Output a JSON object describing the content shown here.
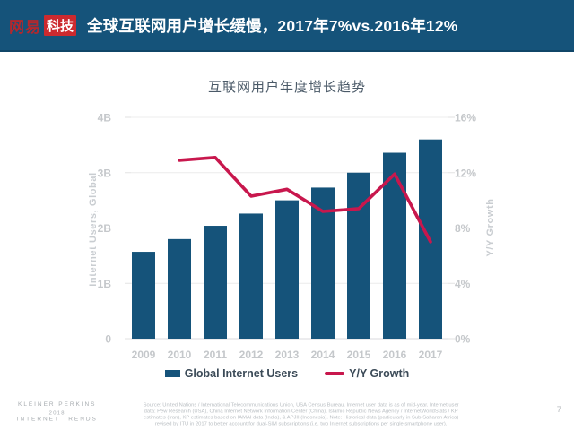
{
  "header": {
    "logo_brand": "网易",
    "logo_sub": "科技",
    "title": "全球互联网用户增长缓慢，2017年7%vs.2016年12%"
  },
  "chart_data": {
    "type": "bar+line",
    "title": "互联网用户年度增长趋势",
    "categories": [
      "2009",
      "2010",
      "2011",
      "2012",
      "2013",
      "2014",
      "2015",
      "2016",
      "2017"
    ],
    "series": [
      {
        "name": "Global Internet Users",
        "type": "bar",
        "axis": "left",
        "unit": "B",
        "color": "#15537a",
        "values": [
          1.57,
          1.8,
          2.04,
          2.26,
          2.5,
          2.73,
          3.0,
          3.36,
          3.6
        ]
      },
      {
        "name": "Y/Y Growth",
        "type": "line",
        "axis": "right",
        "unit": "%",
        "color": "#c8174d",
        "values": [
          null,
          12.9,
          13.1,
          10.3,
          10.8,
          9.2,
          9.4,
          11.9,
          7.0
        ]
      }
    ],
    "left_axis": {
      "label": "Internet Users, Global",
      "ticks": [
        "0",
        "1B",
        "2B",
        "3B",
        "4B"
      ],
      "min": 0,
      "max": 4
    },
    "right_axis": {
      "label": "Y/Y Growth",
      "ticks": [
        "0%",
        "4%",
        "8%",
        "12%",
        "16%"
      ],
      "min": 0,
      "max": 16
    },
    "grid": true,
    "legend_position": "bottom"
  },
  "footer": {
    "branding": [
      "KLEINER PERKINS",
      "2018",
      "INTERNET TRENDS"
    ],
    "source_lines": [
      "Source: United Nations / International Telecommunications Union, USA Census Bureau. Internet user data is as of mid-year. Internet user",
      "data: Pew Research (USA), China Internet Network Information Center (China), Islamic Republic News Agency / InternetWorldStats / KP",
      "estimates (Iran), KP estimates based on IAMAI data (India), & APJII (Indonesia).  Note: Historical data (particularly in Sub-Saharan Africa)",
      "revised by ITU in 2017 to better account for dual-SIM subscriptions (i.e. two Internet subscriptions per single smartphone user)."
    ],
    "page_number": "7"
  },
  "colors": {
    "header_bg": "#15537a",
    "bar": "#15537a",
    "line": "#c8174d",
    "logo_red": "#cc2a2f",
    "legend_text": "#3c4b58"
  }
}
